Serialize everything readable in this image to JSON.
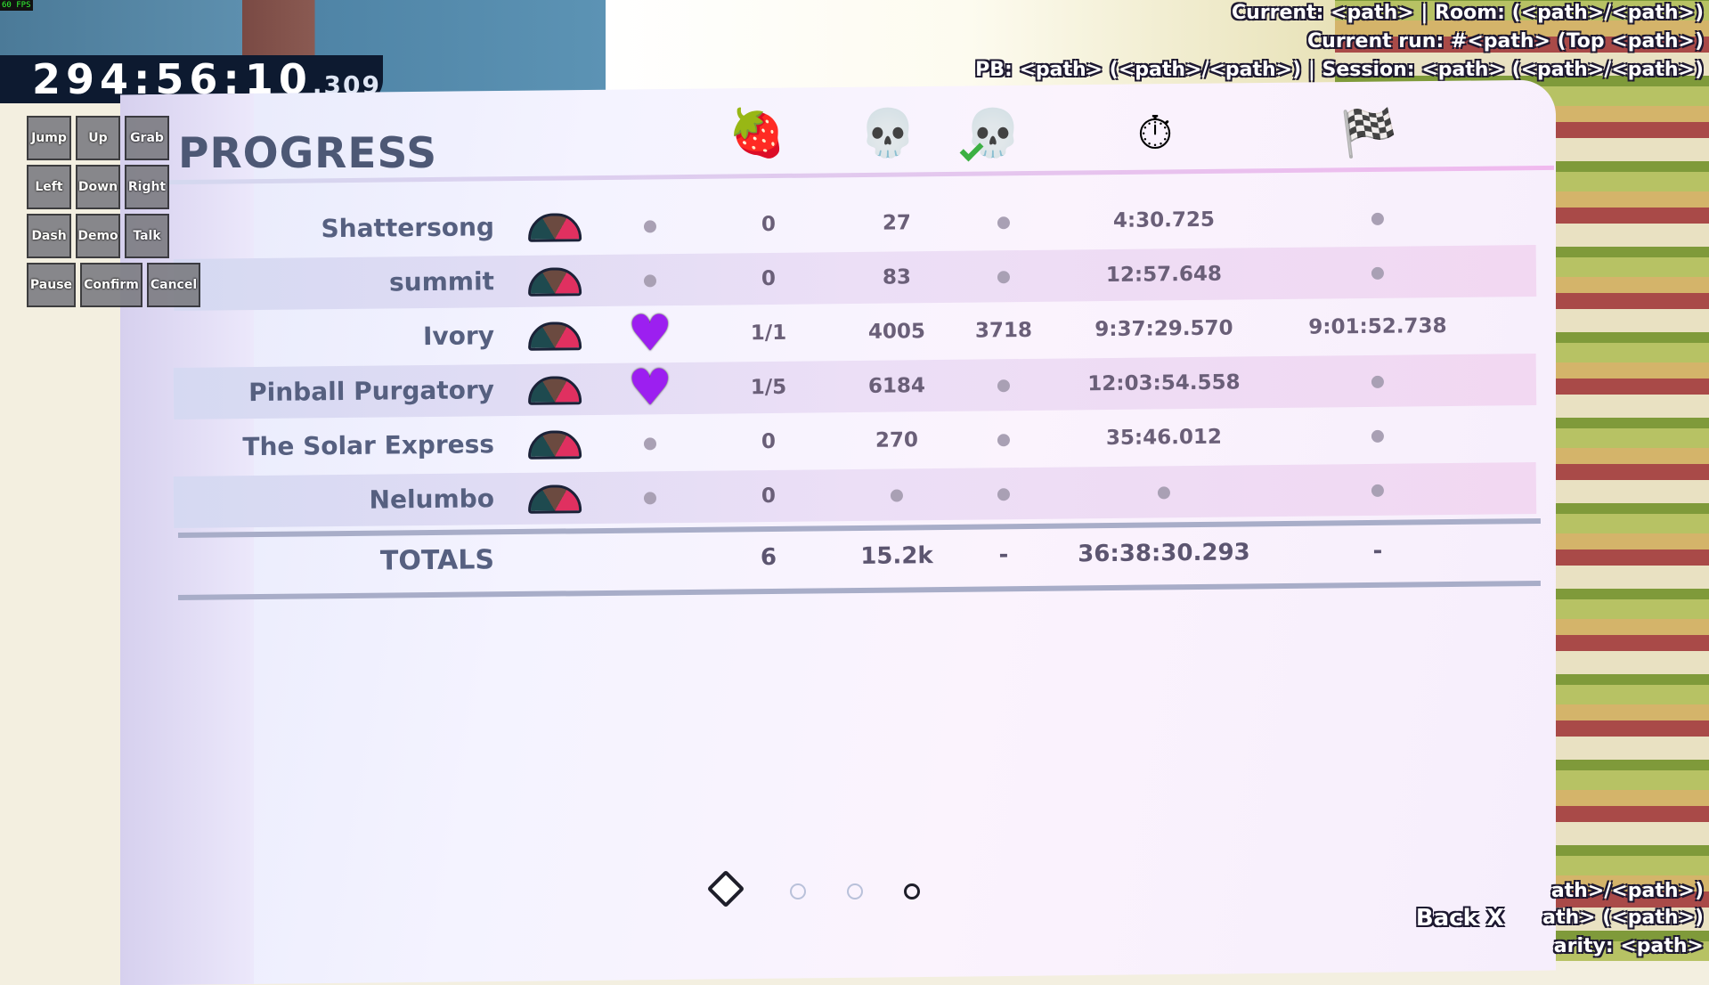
{
  "fps": "60 FPS",
  "timer": {
    "main": "294:56:10",
    "ms": ".309"
  },
  "input_buttons": [
    "Jump",
    "Up",
    "Grab",
    "Left",
    "Down",
    "Right",
    "Dash",
    "Demo",
    "Talk",
    "Pause",
    "Confirm",
    "Cancel"
  ],
  "hud": {
    "line1": "Current: <path> | Room: (<path>/<path>)",
    "line2": "Current run: #<path> (Top <path>)",
    "line3": "PB: <path> (<path>/<path>) | Session: <path> (<path>/<path>)",
    "bottom1": "ath>/<path>)",
    "bottom2": "ath> (<path>)",
    "bottom3": "arity: <path>",
    "back": "Back",
    "back_key": "X"
  },
  "title": "PROGRESS",
  "columns": [
    "strawberry-icon",
    "death-skull-icon",
    "golden-death-skull-icon",
    "stopwatch-icon",
    "checkered-flag-icon"
  ],
  "rows": [
    {
      "name": "Shattersong",
      "heart": false,
      "berries": "0",
      "deaths": "27",
      "golden": null,
      "time": "4:30.725",
      "fastest": null
    },
    {
      "name": "summit",
      "heart": false,
      "berries": "0",
      "deaths": "83",
      "golden": null,
      "time": "12:57.648",
      "fastest": null
    },
    {
      "name": "Ivory",
      "heart": true,
      "berries": "1/1",
      "deaths": "4005",
      "golden": "3718",
      "time": "9:37:29.570",
      "fastest": "9:01:52.738"
    },
    {
      "name": "Pinball Purgatory",
      "heart": true,
      "berries": "1/5",
      "deaths": "6184",
      "golden": null,
      "time": "12:03:54.558",
      "fastest": null
    },
    {
      "name": "The Solar Express",
      "heart": false,
      "berries": "0",
      "deaths": "270",
      "golden": null,
      "time": "35:46.012",
      "fastest": null
    },
    {
      "name": "Nelumbo",
      "heart": false,
      "berries": "0",
      "deaths": null,
      "golden": null,
      "time": null,
      "fastest": null
    }
  ],
  "totals": {
    "label": "TOTALS",
    "berries": "6",
    "deaths": "15.2k",
    "golden": "-",
    "time": "36:38:30.293",
    "fastest": "-"
  },
  "pagination": {
    "pages": 3,
    "current": 3
  },
  "colors": {
    "heart": "#9c1ff0",
    "title": "#4d5875"
  }
}
